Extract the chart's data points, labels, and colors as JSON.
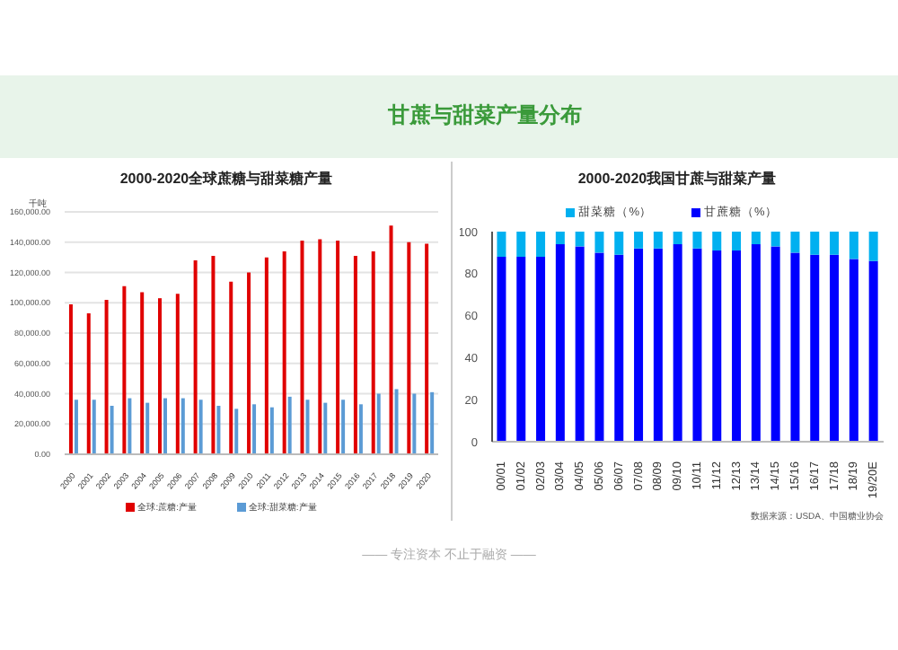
{
  "chart_data": [
    {
      "type": "bar",
      "title": "2000-2020全球蔗糖与甜菜糖产量",
      "ylabel": "千吨",
      "annotations": [
        "甘蔗与甜菜产量分布"
      ],
      "categories": [
        "2000",
        "2001",
        "2002",
        "2003",
        "2004",
        "2005",
        "2006",
        "2007",
        "2008",
        "2009",
        "2010",
        "2011",
        "2012",
        "2013",
        "2014",
        "2015",
        "2016",
        "2017",
        "2018",
        "2019",
        "2020"
      ],
      "series": [
        {
          "name": "全球:蔗糖:产量",
          "color": "#e00000",
          "values": [
            99000,
            93000,
            102000,
            111000,
            107000,
            103000,
            106000,
            128000,
            131000,
            114000,
            120000,
            130000,
            134000,
            141000,
            142000,
            141000,
            131000,
            134000,
            151000,
            140000,
            139000
          ]
        },
        {
          "name": "全球:甜菜糖:产量",
          "color": "#5b9bd5",
          "values": [
            36000,
            36000,
            32000,
            37000,
            34000,
            37000,
            37000,
            36000,
            32000,
            30000,
            33000,
            31000,
            38000,
            36000,
            34000,
            36000,
            33000,
            40000,
            43000,
            40000,
            41000
          ]
        }
      ],
      "ylim": [
        0,
        160000
      ],
      "yticks": [
        {
          "value": 0,
          "label": "0.00"
        },
        {
          "value": 20000,
          "label": "20,000.00"
        },
        {
          "value": 40000,
          "label": "40,000.00"
        },
        {
          "value": 60000,
          "label": "60,000.00"
        },
        {
          "value": 80000,
          "label": "80,000.00"
        },
        {
          "value": 100000,
          "label": "100,000.00"
        },
        {
          "value": 120000,
          "label": "120,000.00"
        },
        {
          "value": 140000,
          "label": "140,000.00"
        },
        {
          "value": 160000,
          "label": "160,000.00"
        }
      ],
      "grid": "y",
      "legend": "bottom"
    },
    {
      "type": "bar",
      "title": "2000-2020我国甘蔗与甜菜产量",
      "annotations": [
        "数据来源：USDA、中国糖业协会",
        "—— 专注资本  不止于融资 ——"
      ],
      "categories": [
        "00/01",
        "01/02",
        "02/03",
        "03/04",
        "04/05",
        "05/06",
        "06/07",
        "07/08",
        "08/09",
        "09/10",
        "10/11",
        "11/12",
        "12/13",
        "13/14",
        "14/15",
        "15/16",
        "16/17",
        "17/18",
        "18/19",
        "19/20E"
      ],
      "stacked": true,
      "series": [
        {
          "name": "甘蔗糖（%）",
          "color": "#0000ff",
          "values": [
            88,
            88,
            88,
            94,
            93,
            90,
            89,
            92,
            92,
            94,
            92,
            91,
            91,
            94,
            93,
            90,
            89,
            89,
            87,
            86
          ]
        },
        {
          "name": "甜菜糖（%）",
          "color": "#00b0f0",
          "values": [
            12,
            12,
            12,
            6,
            7,
            10,
            11,
            8,
            8,
            6,
            8,
            9,
            9,
            6,
            7,
            10,
            11,
            11,
            13,
            14
          ]
        }
      ],
      "ylim": [
        0,
        100
      ],
      "yticks": [
        0,
        20,
        40,
        60,
        80,
        100
      ],
      "legend": "top"
    }
  ]
}
